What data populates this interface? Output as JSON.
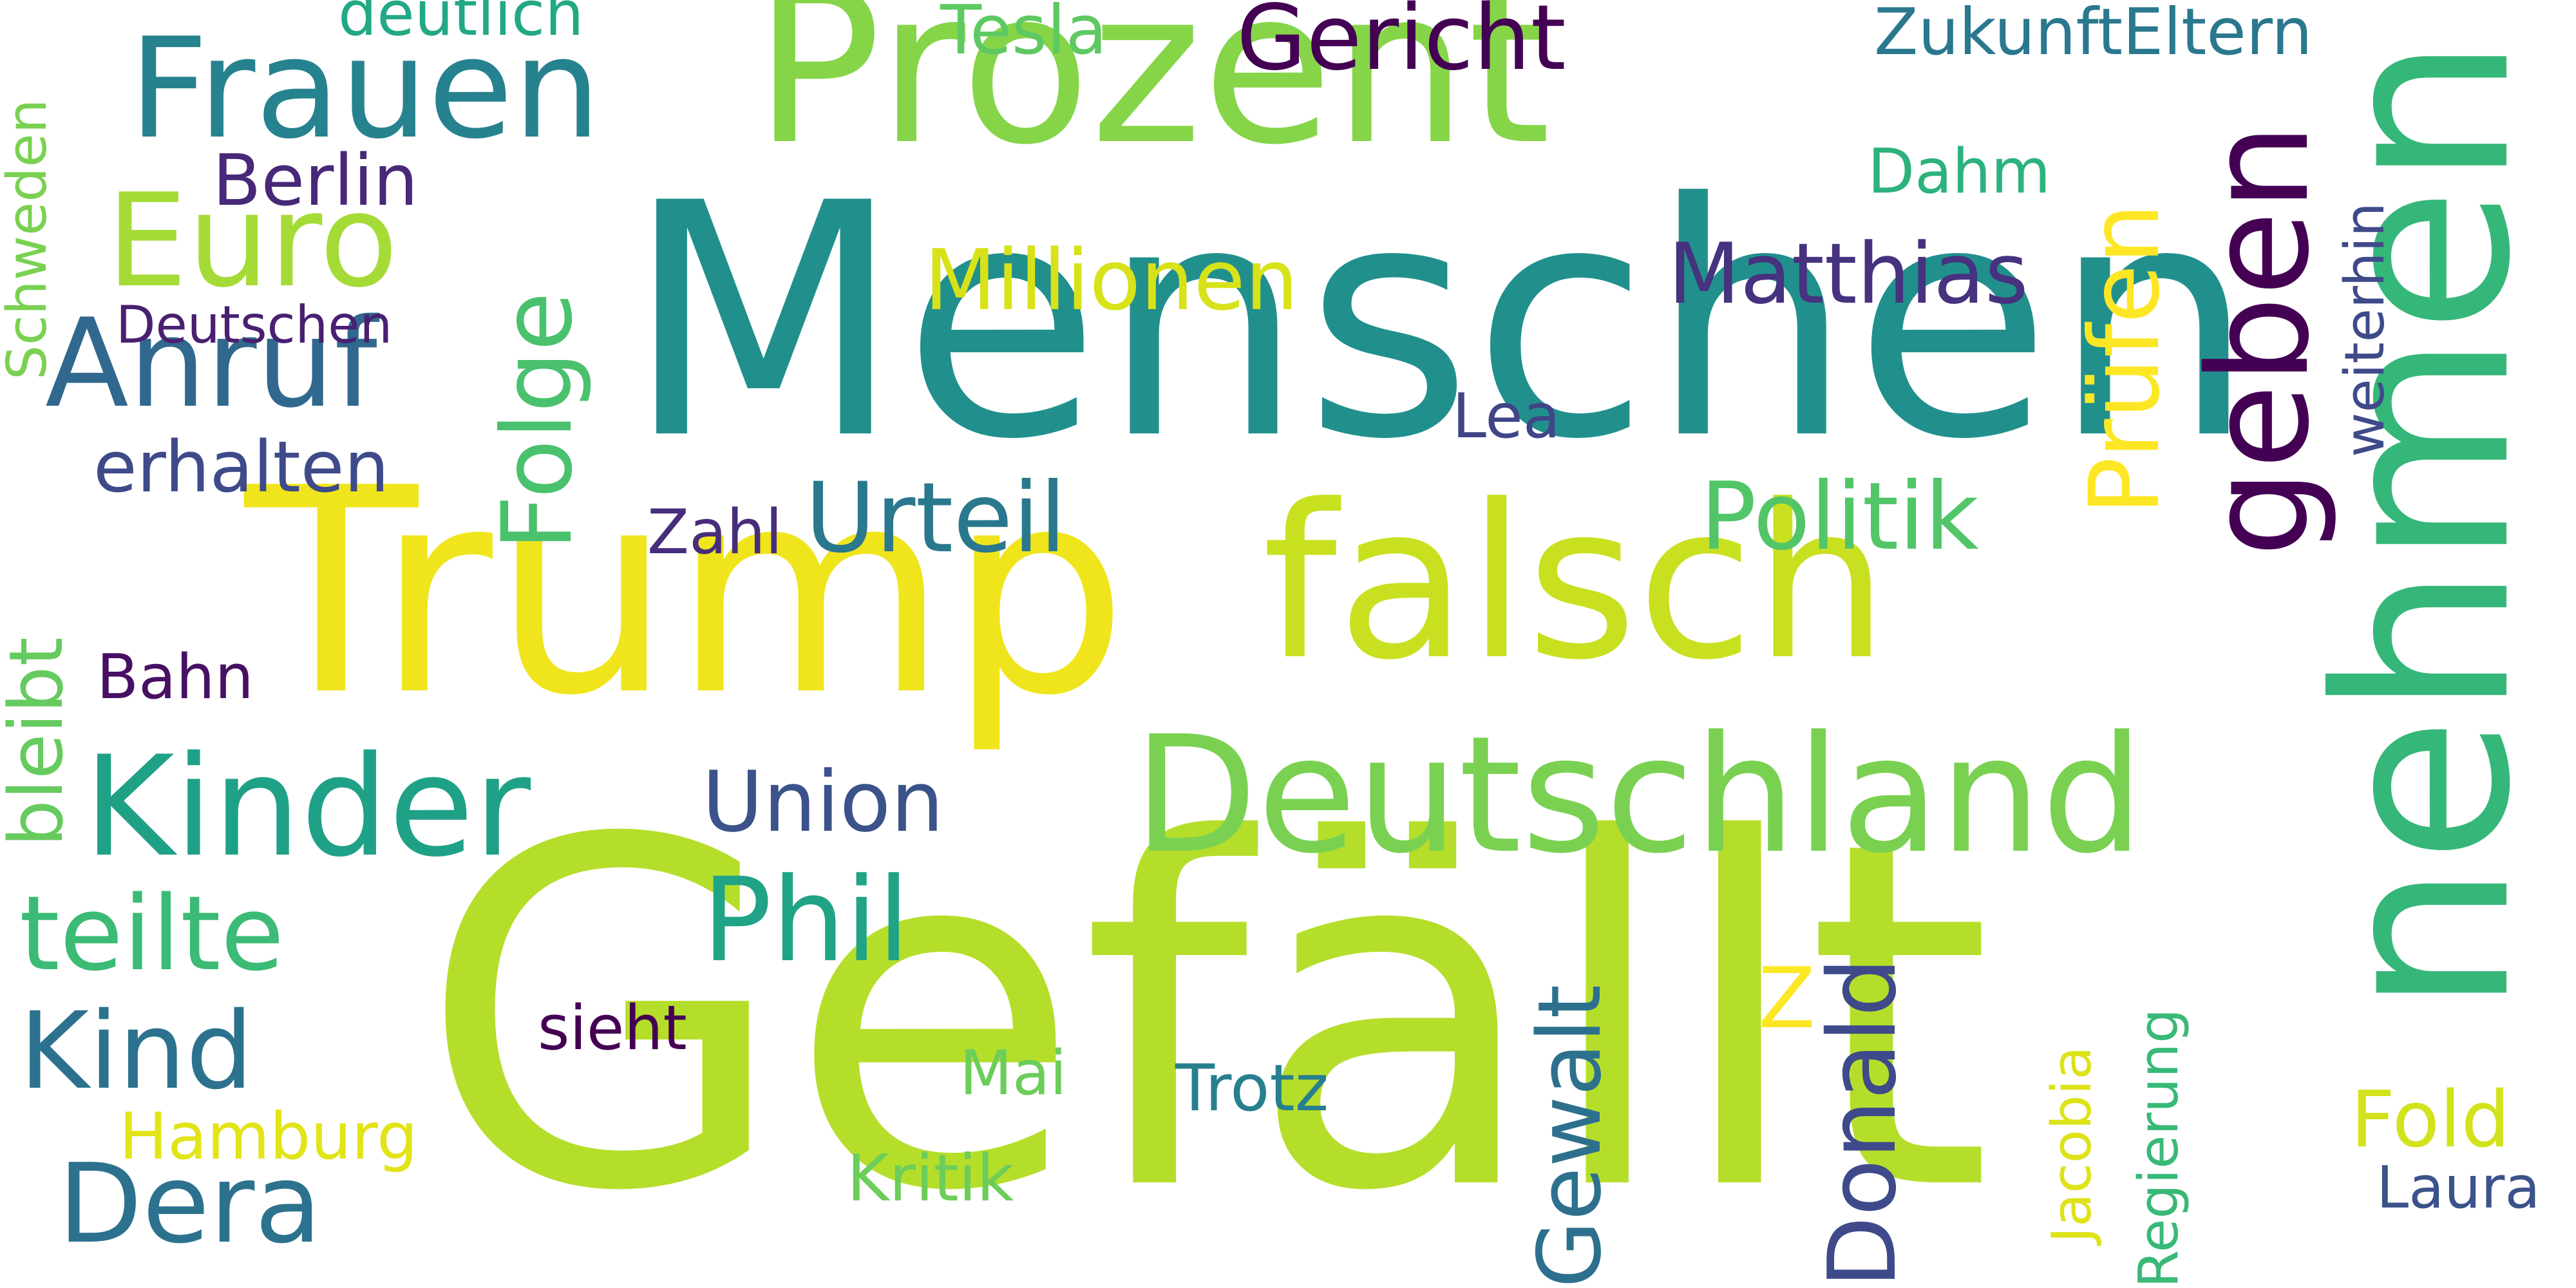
{
  "background": "#ffffff",
  "words": {
    "gefallt": {
      "text": "Gefällt",
      "color": "#b5de2b"
    },
    "menschen": {
      "text": "Menschen",
      "color": "#21908d"
    },
    "trump": {
      "text": "Trump",
      "color": "#f0e51c"
    },
    "prozent": {
      "text": "Prozent",
      "color": "#86d549"
    },
    "falsch": {
      "text": "falsch",
      "color": "#c9e020"
    },
    "nehmen": {
      "text": "nehmen",
      "color": "#35b779"
    },
    "deutschland": {
      "text": "Deutschland",
      "color": "#7ad151"
    },
    "kinder": {
      "text": "Kinder",
      "color": "#1fa187"
    },
    "frauen": {
      "text": "Frauen",
      "color": "#26828e"
    },
    "euro": {
      "text": "Euro",
      "color": "#a5db36"
    },
    "anruf": {
      "text": "Anruf",
      "color": "#31688e"
    },
    "geben": {
      "text": "geben",
      "color": "#440154"
    },
    "phil": {
      "text": "Phil",
      "color": "#20a386"
    },
    "dera": {
      "text": "Dera",
      "color": "#2c728e"
    },
    "kind": {
      "text": "Kind",
      "color": "#2c728e"
    },
    "teilte": {
      "text": "teilte",
      "color": "#3bbb75"
    },
    "urteil": {
      "text": "Urteil",
      "color": "#2a788e"
    },
    "politik": {
      "text": "Politik",
      "color": "#52c569"
    },
    "gericht": {
      "text": "Gericht",
      "color": "#440154"
    },
    "matthias": {
      "text": "Matthias",
      "color": "#46327e"
    },
    "millionen": {
      "text": "Millionen",
      "color": "#d8e219"
    },
    "prufen": {
      "text": "Prüfen",
      "color": "#fde725"
    },
    "folge": {
      "text": "Folge",
      "color": "#4ac16d"
    },
    "union": {
      "text": "Union",
      "color": "#3b528b"
    },
    "berlin": {
      "text": "Berlin",
      "color": "#482878"
    },
    "erhalten": {
      "text": "erhalten",
      "color": "#3e4a89"
    },
    "donald": {
      "text": "Donald",
      "color": "#3e4a89"
    },
    "gewalt": {
      "text": "Gewalt",
      "color": "#2d708e"
    },
    "fold": {
      "text": "Fold",
      "color": "#d2e21b"
    },
    "tesla": {
      "text": "Tesla",
      "color": "#5ec962"
    },
    "zukunfteltern": {
      "text": "ZukunftEltern",
      "color": "#2a788e"
    },
    "trotz": {
      "text": "Trotz",
      "color": "#277f8e"
    },
    "deutlich": {
      "text": "deutlich",
      "color": "#22a884"
    },
    "dahm": {
      "text": "Dahm",
      "color": "#2db27d"
    },
    "sieht": {
      "text": "sieht",
      "color": "#440154"
    },
    "hamburg": {
      "text": "Hamburg",
      "color": "#e2e418"
    },
    "kritik": {
      "text": "Kritik",
      "color": "#6ccd5a"
    },
    "bahn": {
      "text": "Bahn",
      "color": "#471063"
    },
    "lea": {
      "text": "Lea",
      "color": "#414487"
    },
    "zahl": {
      "text": "Zahl",
      "color": "#472d7b"
    },
    "mai": {
      "text": "Mai",
      "color": "#6ccd5a"
    },
    "laura": {
      "text": "Laura",
      "color": "#3b528b"
    },
    "z": {
      "text": "Z",
      "color": "#fde725"
    },
    "deutschen": {
      "text": "Deutschen",
      "color": "#482071"
    },
    "bleibt": {
      "text": "bleibt",
      "color": "#65cb5e"
    },
    "schweden": {
      "text": "Schweden",
      "color": "#7ad151"
    },
    "weiterhin": {
      "text": "weiterhin",
      "color": "#3e4a89"
    },
    "regierung": {
      "text": "Regierung",
      "color": "#38b977"
    },
    "jacobia": {
      "text": "Jacobia",
      "color": "#dde318"
    }
  }
}
